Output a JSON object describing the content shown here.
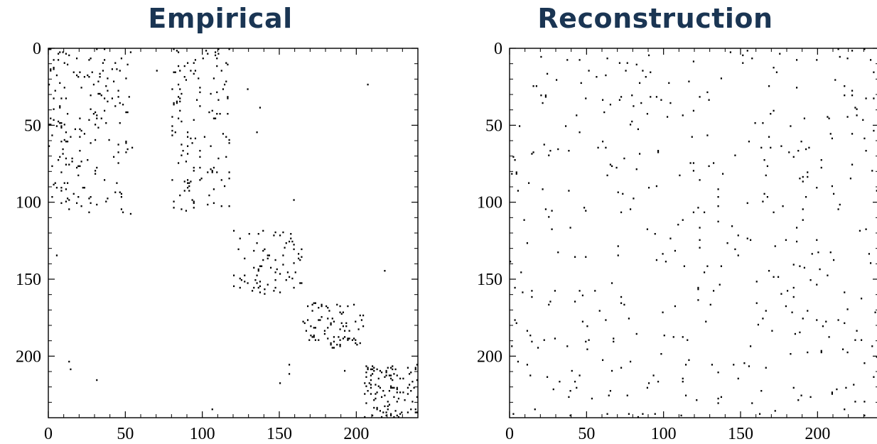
{
  "chart_data": [
    {
      "type": "heatmap",
      "title": "Empirical",
      "xlim": [
        0,
        240
      ],
      "ylim": [
        240,
        0
      ],
      "x_ticks": [
        0,
        50,
        100,
        150,
        200
      ],
      "y_ticks": [
        0,
        50,
        100,
        150,
        200
      ],
      "grid": false,
      "colors": {
        "title": "#1a3553",
        "marks": "#000000",
        "background": "#ffffff"
      },
      "blocks": [
        {
          "x": [
            0,
            55
          ],
          "y": [
            0,
            108
          ],
          "density": 0.03
        },
        {
          "x": [
            80,
            118
          ],
          "y": [
            0,
            105
          ],
          "density": 0.03
        },
        {
          "x": [
            118,
            165
          ],
          "y": [
            118,
            160
          ],
          "density": 0.045
        },
        {
          "x": [
            165,
            205
          ],
          "y": [
            165,
            195
          ],
          "density": 0.06
        },
        {
          "x": [
            205,
            240
          ],
          "y": [
            205,
            240
          ],
          "density": 0.085
        },
        {
          "x": [
            0,
            240
          ],
          "y": [
            0,
            240
          ],
          "density": 0.0004
        }
      ]
    },
    {
      "type": "heatmap",
      "title": "Reconstruction",
      "xlim": [
        0,
        240
      ],
      "ylim": [
        240,
        0
      ],
      "x_ticks": [
        0,
        50,
        100,
        150,
        200
      ],
      "y_ticks": [
        0,
        50,
        100,
        150,
        200
      ],
      "grid": false,
      "colors": {
        "title": "#1a3553",
        "marks": "#000000",
        "background": "#ffffff"
      },
      "blocks": [
        {
          "x": [
            0,
            240
          ],
          "y": [
            0,
            240
          ],
          "density": 0.0075
        }
      ]
    }
  ]
}
